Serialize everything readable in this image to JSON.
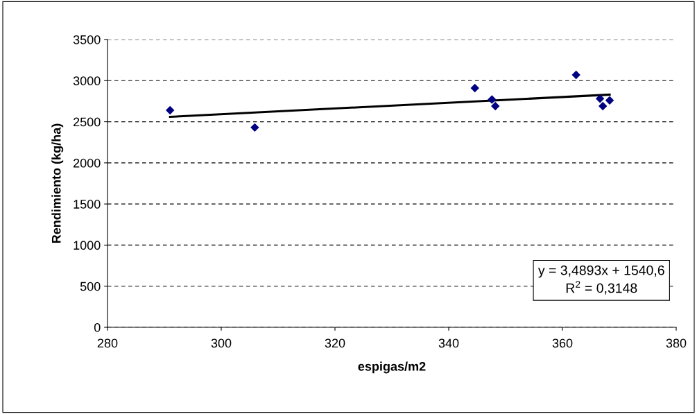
{
  "chart_data": {
    "type": "scatter",
    "xlabel": "espigas/m2",
    "ylabel": "Rendimiento (kg/ha)",
    "series": [
      {
        "color": "#000080",
        "marker": "diamond",
        "x": [
          291,
          305.9,
          344.6,
          347.6,
          348.2,
          362.4,
          366.6,
          367.1,
          368.3
        ],
        "values": [
          2640,
          2430,
          2910,
          2770,
          2690,
          3070,
          2780,
          2690,
          2760
        ]
      },
      {
        "type": "line",
        "color": "#000000",
        "marker": "none",
        "line_style": "solid",
        "x": [
          291,
          368.3
        ],
        "values": [
          2560,
          2830
        ]
      }
    ],
    "xlim": [
      280,
      380
    ],
    "xticks": [
      280,
      300,
      320,
      340,
      360,
      380
    ],
    "ylim": [
      0,
      3500
    ],
    "yticks": [
      0,
      500,
      1000,
      1500,
      2000,
      2500,
      3000,
      3500
    ],
    "grid": "y",
    "legend": false,
    "annotations": [
      "y = 3,4893x + 1540,6\nR$^{2}$ = 0,3148"
    ]
  }
}
